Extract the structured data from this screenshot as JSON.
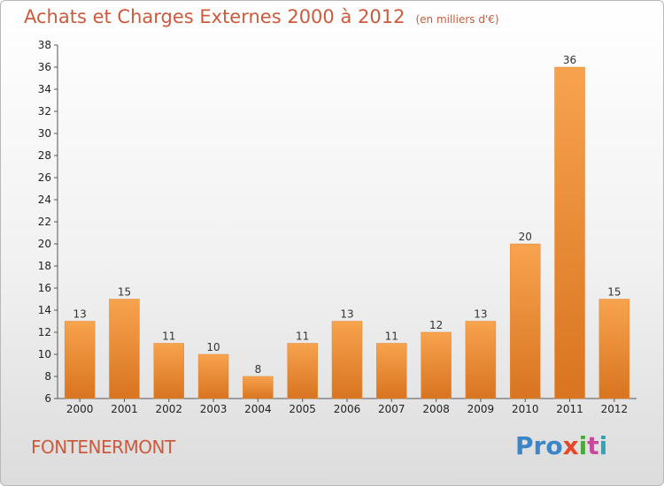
{
  "chart_data": {
    "type": "bar",
    "title": "Achats et Charges Externes 2000 à 2012",
    "subtitle": "(en milliers d'€)",
    "categories": [
      "2000",
      "2001",
      "2002",
      "2003",
      "2004",
      "2005",
      "2006",
      "2007",
      "2008",
      "2009",
      "2010",
      "2011",
      "2012"
    ],
    "values": [
      13,
      15,
      11,
      10,
      8,
      11,
      13,
      11,
      12,
      13,
      20,
      36,
      15
    ],
    "ylim": [
      6,
      38
    ],
    "yticks": [
      6,
      8,
      10,
      12,
      14,
      16,
      18,
      20,
      22,
      24,
      26,
      28,
      30,
      32,
      34,
      36,
      38
    ],
    "grid": false,
    "bar_color": "#f0923a",
    "bar_color_dark": "#d4701e"
  },
  "footer": {
    "town": "FONTENERMONT",
    "logo": {
      "p1": "Pro",
      "p2": "x",
      "p3": "i",
      "p4": "t",
      "p5": "i"
    }
  }
}
